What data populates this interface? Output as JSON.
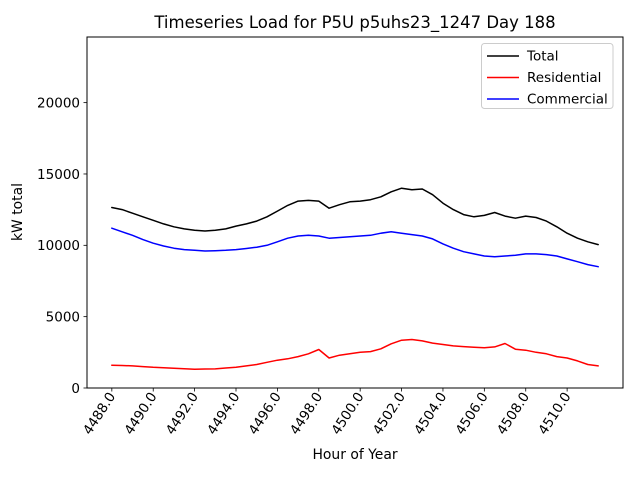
{
  "figure": {
    "title": "Timeseries Load for P5U p5uhs23_1247  Day 188",
    "xlabel": "Hour of Year",
    "ylabel": "kW total"
  },
  "legend": {
    "position": "upper right",
    "entries": [
      {
        "label": "Total",
        "color": "#000000"
      },
      {
        "label": "Residential",
        "color": "#ff0000"
      },
      {
        "label": "Commercial",
        "color": "#0000ff"
      }
    ]
  },
  "chart_data": {
    "type": "line",
    "title": "Timeseries Load for P5U p5uhs23_1247  Day 188",
    "xlabel": "Hour of Year",
    "ylabel": "kW total",
    "grid": false,
    "legend_position": "upper right",
    "xlim": [
      4486.8,
      4512.7
    ],
    "ylim": [
      0,
      24600
    ],
    "xticks": [
      4488,
      4490,
      4492,
      4494,
      4496,
      4498,
      4500,
      4502,
      4504,
      4506,
      4508,
      4510
    ],
    "xtick_labels": [
      "4488.0",
      "4490.0",
      "4492.0",
      "4494.0",
      "4496.0",
      "4498.0",
      "4500.0",
      "4502.0",
      "4504.0",
      "4506.0",
      "4508.0",
      "4510.0"
    ],
    "yticks": [
      0,
      5000,
      10000,
      15000,
      20000
    ],
    "x": [
      4488.0,
      4488.5,
      4489.0,
      4489.5,
      4490.0,
      4490.5,
      4491.0,
      4491.5,
      4492.0,
      4492.5,
      4493.0,
      4493.5,
      4494.0,
      4494.5,
      4495.0,
      4495.5,
      4496.0,
      4496.5,
      4497.0,
      4497.5,
      4498.0,
      4498.5,
      4499.0,
      4499.5,
      4500.0,
      4500.5,
      4501.0,
      4501.5,
      4502.0,
      4502.5,
      4503.0,
      4503.5,
      4504.0,
      4504.5,
      4505.0,
      4505.5,
      4506.0,
      4506.5,
      4507.0,
      4507.5,
      4508.0,
      4508.5,
      4509.0,
      4509.5,
      4510.0,
      4510.5,
      4511.0,
      4511.5
    ],
    "series": [
      {
        "name": "Total",
        "color": "#000000",
        "values": [
          12650,
          12500,
          12250,
          12000,
          11750,
          11500,
          11300,
          11150,
          11050,
          11000,
          11050,
          11150,
          11350,
          11500,
          11700,
          12000,
          12400,
          12800,
          13100,
          13150,
          13100,
          12600,
          12850,
          13050,
          13100,
          13200,
          13400,
          13750,
          14000,
          13900,
          13950,
          13550,
          12950,
          12500,
          12150,
          12000,
          12100,
          12300,
          12050,
          11900,
          12050,
          11950,
          11700,
          11300,
          10850,
          10500,
          10250,
          10050
        ]
      },
      {
        "name": "Residential",
        "color": "#ff0000",
        "values": [
          1600,
          1580,
          1550,
          1500,
          1450,
          1420,
          1380,
          1350,
          1320,
          1330,
          1340,
          1400,
          1450,
          1550,
          1650,
          1800,
          1950,
          2050,
          2200,
          2400,
          2700,
          2100,
          2300,
          2400,
          2500,
          2550,
          2750,
          3100,
          3350,
          3400,
          3300,
          3150,
          3050,
          2950,
          2900,
          2850,
          2820,
          2880,
          3120,
          2720,
          2650,
          2500,
          2400,
          2200,
          2100,
          1900,
          1650,
          1550
        ]
      },
      {
        "name": "Commercial",
        "color": "#0000ff",
        "values": [
          11200,
          10950,
          10700,
          10400,
          10150,
          9950,
          9800,
          9700,
          9650,
          9600,
          9620,
          9650,
          9700,
          9780,
          9870,
          10000,
          10250,
          10500,
          10650,
          10700,
          10650,
          10500,
          10550,
          10600,
          10650,
          10700,
          10850,
          10950,
          10850,
          10750,
          10650,
          10450,
          10100,
          9800,
          9550,
          9400,
          9250,
          9200,
          9250,
          9300,
          9400,
          9400,
          9350,
          9250,
          9050,
          8850,
          8650,
          8500
        ]
      }
    ]
  }
}
